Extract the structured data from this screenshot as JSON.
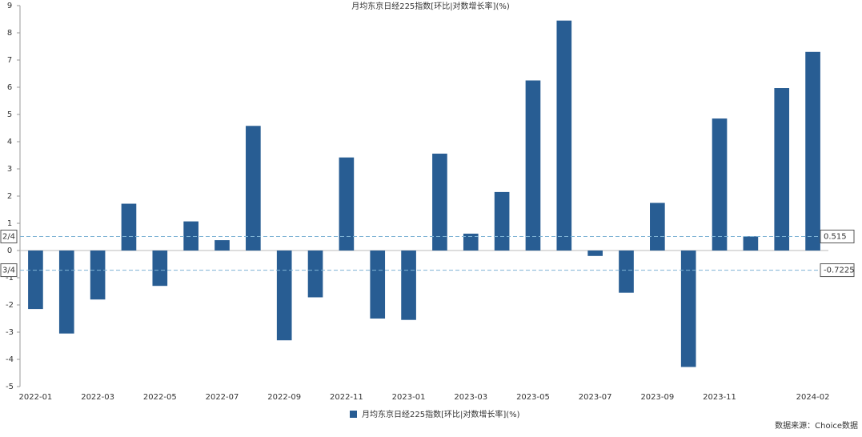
{
  "chart_data": {
    "type": "bar",
    "title": "月均东京日经225指数[环比|对数增长率](%)",
    "categories": [
      "2022-01",
      null,
      "2022-03",
      null,
      "2022-05",
      null,
      "2022-07",
      null,
      "2022-09",
      null,
      "2022-11",
      null,
      "2023-01",
      null,
      "2023-03",
      null,
      "2023-05",
      null,
      "2023-07",
      null,
      "2023-09",
      null,
      "2023-11",
      null,
      null,
      "2024-02"
    ],
    "series": [
      {
        "name": "月均东京日经225指数[环比|对数增长率](%)",
        "color": "#285d93",
        "values": [
          -2.15,
          -3.05,
          -1.8,
          1.72,
          -1.3,
          1.07,
          0.38,
          4.58,
          -3.3,
          -1.72,
          3.42,
          -2.5,
          -2.55,
          3.56,
          0.62,
          2.15,
          6.25,
          8.45,
          -0.2,
          -1.55,
          1.75,
          -4.28,
          4.85,
          0.52,
          5.97,
          7.3
        ]
      }
    ],
    "ylim": [
      -5,
      9
    ],
    "yticks": [
      -5,
      -4,
      -3,
      -2,
      -1,
      0,
      1,
      2,
      3,
      4,
      5,
      6,
      7,
      8,
      9
    ],
    "reference_lines": [
      {
        "value": 0.515,
        "label": "0.515",
        "tag": "2/4"
      },
      {
        "value": -0.7225,
        "label": "-0.7225",
        "tag": "3/4"
      }
    ],
    "source": "数据来源：Choice数据"
  }
}
